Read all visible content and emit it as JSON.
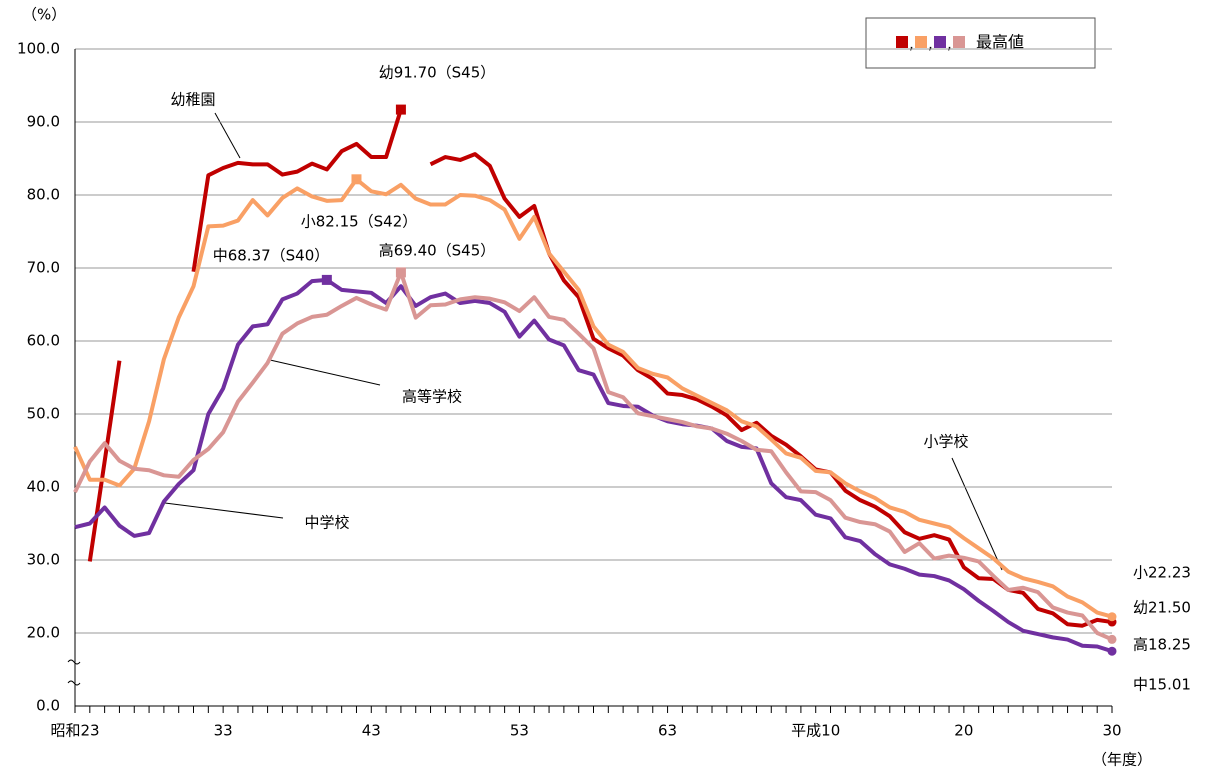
{
  "chart_data": {
    "type": "line",
    "y_unit_label": "（%）",
    "x_unit_label": "（年度）",
    "legend_separator": ",",
    "legend_label": "最高値",
    "ylim": [
      0,
      100
    ],
    "yticks": [
      {
        "value": 0,
        "label": "0.0"
      },
      {
        "value": 20,
        "label": "20.0"
      },
      {
        "value": 30,
        "label": "30.0"
      },
      {
        "value": 40,
        "label": "40.0"
      },
      {
        "value": 50,
        "label": "50.0"
      },
      {
        "value": 60,
        "label": "60.0"
      },
      {
        "value": 70,
        "label": "70.0"
      },
      {
        "value": 80,
        "label": "80.0"
      },
      {
        "value": 90,
        "label": "90.0"
      },
      {
        "value": 100,
        "label": "100.0"
      }
    ],
    "grid": true,
    "categories": [
      "昭和23",
      null,
      null,
      null,
      null,
      null,
      null,
      null,
      null,
      null,
      "33",
      null,
      null,
      null,
      null,
      null,
      null,
      null,
      null,
      null,
      "43",
      null,
      null,
      null,
      null,
      null,
      null,
      null,
      null,
      null,
      "53",
      null,
      null,
      null,
      null,
      null,
      null,
      null,
      null,
      null,
      "63",
      null,
      null,
      null,
      null,
      null,
      null,
      null,
      null,
      null,
      "平成10",
      null,
      null,
      null,
      null,
      null,
      null,
      null,
      null,
      null,
      "20",
      null,
      null,
      null,
      null,
      null,
      null,
      null,
      null,
      null,
      "30"
    ],
    "series": [
      {
        "name": "幼稚園",
        "color": "#c00000",
        "max_label": "幼91.70（S45）",
        "end_label": "幼21.50",
        "values": [
          null,
          29.8,
          43.5,
          57.3,
          null,
          null,
          null,
          null,
          69.5,
          82.7,
          83.7,
          84.4,
          84.2,
          84.2,
          82.8,
          83.2,
          84.3,
          83.5,
          86.0,
          87.0,
          85.2,
          85.2,
          91.7,
          null,
          84.2,
          85.2,
          84.8,
          85.6,
          84.0,
          79.5,
          77.0,
          78.5,
          72.0,
          68.3,
          66.0,
          60.3,
          59.0,
          58.0,
          56.0,
          54.8,
          52.8,
          52.6,
          52.0,
          51.0,
          49.8,
          47.8,
          48.8,
          47.0,
          45.8,
          44.2,
          42.4,
          42.0,
          39.5,
          38.2,
          37.3,
          36.0,
          33.8,
          32.9,
          33.4,
          32.8,
          29.0,
          27.5,
          27.4,
          25.9,
          25.5,
          23.3,
          22.7,
          21.2,
          21.0,
          21.8,
          21.5
        ]
      },
      {
        "name": "小学校",
        "color": "#f9a065",
        "max_label": "小82.15（S42）",
        "end_label": "小22.23",
        "values": [
          45.5,
          41.0,
          41.0,
          40.2,
          42.5,
          49.0,
          57.5,
          63.2,
          67.5,
          75.7,
          75.8,
          76.5,
          79.3,
          77.2,
          79.6,
          80.9,
          79.8,
          79.2,
          79.3,
          82.15,
          80.5,
          80.1,
          81.4,
          79.5,
          78.7,
          78.7,
          80.0,
          79.9,
          79.3,
          78.0,
          74.0,
          77.0,
          72.0,
          69.5,
          67.0,
          62.0,
          59.5,
          58.5,
          56.3,
          55.5,
          55.0,
          53.5,
          52.5,
          51.5,
          50.5,
          49.0,
          48.3,
          46.5,
          44.6,
          44.0,
          42.2,
          42.0,
          40.5,
          39.4,
          38.5,
          37.2,
          36.6,
          35.5,
          35.0,
          34.5,
          33.0,
          31.6,
          30.2,
          28.4,
          27.5,
          27.0,
          26.4,
          25.0,
          24.2,
          22.8,
          22.23
        ]
      },
      {
        "name": "中学校",
        "color": "#7030a0",
        "max_label": "中68.37（S40）",
        "end_label": "中15.01",
        "values": [
          34.5,
          35.0,
          37.2,
          34.7,
          33.3,
          33.7,
          38.0,
          40.4,
          42.3,
          50.0,
          53.5,
          59.5,
          62.0,
          62.3,
          65.7,
          66.5,
          68.2,
          68.37,
          67.0,
          66.8,
          66.6,
          65.2,
          67.5,
          64.8,
          66.0,
          66.5,
          65.2,
          65.5,
          65.2,
          64.0,
          60.6,
          62.8,
          60.2,
          59.4,
          56.0,
          55.4,
          51.5,
          51.1,
          51.0,
          49.8,
          49.0,
          48.6,
          48.4,
          48.0,
          46.3,
          45.5,
          45.3,
          40.5,
          38.6,
          38.2,
          36.2,
          35.7,
          33.1,
          32.6,
          30.8,
          29.4,
          28.8,
          28.0,
          27.8,
          27.2,
          26.0,
          24.4,
          23.0,
          21.5,
          20.3,
          19.7,
          18.8,
          18.2,
          16.5,
          16.3,
          15.01
        ]
      },
      {
        "name": "高等学校",
        "color": "#d99694",
        "max_label": "高69.40（S45）",
        "end_label": "高18.25",
        "values": [
          39.3,
          43.5,
          46.0,
          43.6,
          42.5,
          42.3,
          41.6,
          41.4,
          43.7,
          45.2,
          47.5,
          51.7,
          54.3,
          57.0,
          61.0,
          62.4,
          63.3,
          63.6,
          64.8,
          65.9,
          65.0,
          64.3,
          69.4,
          63.2,
          64.9,
          65.0,
          65.7,
          66.0,
          65.8,
          65.3,
          64.1,
          66.0,
          63.3,
          62.9,
          61.0,
          59.0,
          53.0,
          52.3,
          50.1,
          49.7,
          49.3,
          48.9,
          48.3,
          48.0,
          47.3,
          46.3,
          45.1,
          44.9,
          42.0,
          39.4,
          39.3,
          38.2,
          35.8,
          35.2,
          34.9,
          33.9,
          31.1,
          32.3,
          30.2,
          30.6,
          30.3,
          29.8,
          27.8,
          25.9,
          26.2,
          25.6,
          23.5,
          22.8,
          22.4,
          20.0,
          18.25
        ]
      }
    ]
  }
}
